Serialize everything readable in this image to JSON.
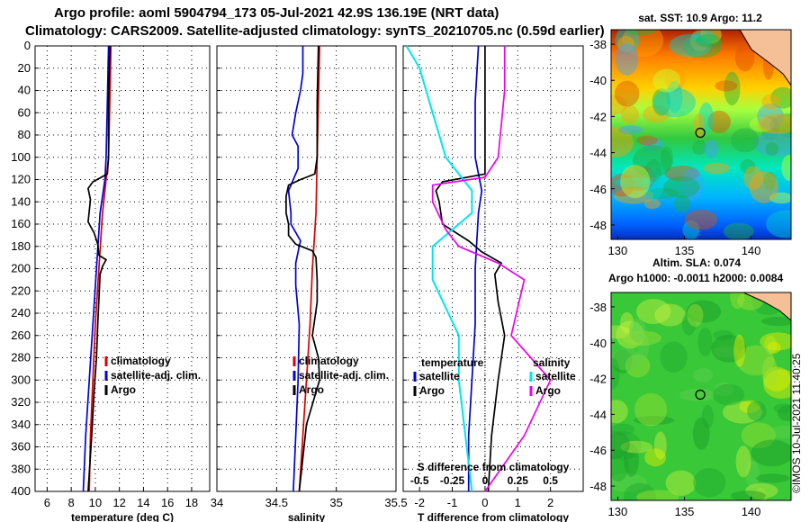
{
  "header": {
    "line1": "Argo profile: aoml 5904794_173 05-Jul-2021 42.9S 136.19E (NRT data)",
    "line2": "Climatology: CARS2009. Satellite-adjusted climatology: synTS_20210705.nc (0.59d earlier)"
  },
  "colors": {
    "climatology": "#dd0000",
    "satellite": "#0000dd",
    "argo": "#000000",
    "sat_T_diff": "#0000cc",
    "sat_S_diff": "#00e5ee",
    "argo_S_diff": "#ee00ee"
  },
  "depth_ticks": [
    "0",
    "20",
    "40",
    "60",
    "80",
    "100",
    "120",
    "140",
    "160",
    "180",
    "200",
    "220",
    "240",
    "260",
    "280",
    "300",
    "320",
    "340",
    "360",
    "380",
    "400"
  ],
  "chart_data": [
    {
      "type": "line",
      "name": "temperature",
      "xlabel": "temperature (deg C)",
      "ylabel": "depth",
      "xlim": [
        5,
        19.5
      ],
      "ylim": [
        400,
        0
      ],
      "xticks": [
        "6",
        "8",
        "10",
        "12",
        "14",
        "16",
        "18"
      ],
      "legend": [
        "climatology",
        "satellite-adj. clim.",
        "Argo"
      ],
      "series": [
        {
          "name": "climatology",
          "depth": [
            0,
            50,
            100,
            120,
            150,
            200,
            250,
            300,
            350,
            400
          ],
          "values": [
            11.3,
            11.2,
            11.1,
            10.9,
            10.6,
            10.3,
            10.0,
            9.8,
            9.6,
            9.5
          ]
        },
        {
          "name": "satellite-adj. clim.",
          "depth": [
            0,
            50,
            100,
            120,
            150,
            200,
            250,
            300,
            350,
            400
          ],
          "values": [
            11.1,
            11.0,
            10.9,
            10.8,
            10.4,
            10.1,
            9.8,
            9.5,
            9.2,
            9.0
          ]
        },
        {
          "name": "Argo",
          "depth": [
            0,
            50,
            100,
            115,
            122,
            128,
            138,
            158,
            168,
            178,
            188,
            192,
            198,
            205,
            250,
            280,
            310,
            350,
            400
          ],
          "values": [
            11.2,
            11.1,
            11.1,
            11.0,
            9.8,
            9.4,
            9.6,
            9.4,
            9.9,
            10.2,
            10.3,
            10.9,
            10.6,
            10.4,
            10.2,
            10.1,
            9.9,
            9.7,
            9.4
          ]
        }
      ]
    },
    {
      "type": "line",
      "name": "salinity",
      "xlabel": "salinity",
      "ylabel": "depth",
      "xlim": [
        34,
        35.5
      ],
      "ylim": [
        400,
        0
      ],
      "xticks": [
        "34",
        "34.5",
        "35",
        "35.5"
      ],
      "legend": [
        "climatology",
        "satellite-adj. clim.",
        "Argo"
      ],
      "series": [
        {
          "name": "climatology",
          "depth": [
            0,
            50,
            100,
            150,
            200,
            250,
            300,
            350,
            400
          ],
          "values": [
            34.86,
            34.85,
            34.84,
            34.83,
            34.8,
            34.78,
            34.75,
            34.72,
            34.69
          ]
        },
        {
          "name": "satellite-adj. clim.",
          "depth": [
            0,
            25,
            40,
            60,
            80,
            90,
            110,
            130,
            150,
            160,
            175,
            180,
            195,
            205,
            215,
            250,
            300,
            350,
            400
          ],
          "values": [
            34.72,
            34.72,
            34.7,
            34.66,
            34.63,
            34.68,
            34.68,
            34.6,
            34.62,
            34.62,
            34.7,
            34.69,
            34.66,
            34.66,
            34.66,
            34.69,
            34.68,
            34.66,
            34.64
          ]
        },
        {
          "name": "Argo",
          "depth": [
            0,
            50,
            100,
            115,
            120,
            125,
            135,
            150,
            160,
            170,
            178,
            184,
            190,
            210,
            230,
            260,
            280,
            300,
            340,
            400
          ],
          "values": [
            34.85,
            34.84,
            34.84,
            34.82,
            34.7,
            34.6,
            34.58,
            34.58,
            34.6,
            34.6,
            34.66,
            34.8,
            34.83,
            34.84,
            34.84,
            34.8,
            34.85,
            34.86,
            34.75,
            34.69
          ]
        }
      ]
    },
    {
      "type": "line",
      "name": "differences",
      "xlabel": "T difference from climatology",
      "xlim": [
        -2.5,
        3
      ],
      "ylim": [
        400,
        0
      ],
      "xticks": [
        "-2",
        "-1",
        "0",
        "1",
        "2"
      ],
      "top_label": "S difference from climatology",
      "top_ticks": [
        "-0.5",
        "-0.25",
        "0",
        "0.25",
        "0.5"
      ],
      "legend_left_title": "temperature",
      "legend_right_title": "salinity",
      "legend": [
        "satellite",
        "Argo",
        "satellite",
        "Argo"
      ],
      "series": [
        {
          "name": "T satellite",
          "depth": [
            0,
            50,
            100,
            130,
            150,
            200,
            250,
            300,
            350,
            400
          ],
          "values": [
            -0.2,
            -0.3,
            -0.3,
            -0.1,
            -0.2,
            -0.3,
            -0.3,
            -0.4,
            -0.5,
            -0.5
          ]
        },
        {
          "name": "T Argo",
          "depth": [
            0,
            50,
            100,
            115,
            122,
            130,
            140,
            160,
            175,
            185,
            195,
            205,
            230,
            260,
            300,
            350,
            400
          ],
          "values": [
            0,
            0,
            0,
            0,
            -1.3,
            -1.5,
            -1.4,
            -1.3,
            -0.5,
            -0.1,
            0.5,
            0.3,
            0.4,
            0.6,
            0.4,
            0.2,
            0.1
          ]
        },
        {
          "name": "S satellite",
          "depth": [
            0,
            20,
            60,
            100,
            130,
            150,
            180,
            210,
            260,
            300,
            350,
            400
          ],
          "values": [
            -0.6,
            -0.5,
            -0.4,
            -0.3,
            -0.1,
            -0.1,
            -0.4,
            -0.4,
            -0.2,
            -0.2,
            -0.15,
            -0.1
          ]
        },
        {
          "name": "S Argo",
          "depth": [
            0,
            40,
            100,
            118,
            125,
            140,
            165,
            180,
            195,
            210,
            260,
            300,
            350,
            400
          ],
          "values": [
            0.15,
            0.15,
            0.1,
            0,
            -0.4,
            -0.4,
            -0.3,
            -0.2,
            0.1,
            0.3,
            0.2,
            0.5,
            0.3,
            0
          ]
        }
      ]
    },
    {
      "type": "heatmap",
      "name": "sst_map",
      "title": "sat. SST: 10.9 Argo: 11.2",
      "xticks": [
        "130",
        "135",
        "140"
      ],
      "yticks": [
        "-38",
        "-40",
        "-42",
        "-44",
        "-46",
        "-48"
      ],
      "xlim": [
        129.5,
        143
      ],
      "ylim": [
        -48.8,
        -37.2
      ],
      "marker": {
        "lon": 136.19,
        "lat": -42.9
      }
    },
    {
      "type": "heatmap",
      "name": "sla_map",
      "title": "Altim. SLA: 0.074",
      "subtitle": "Argo h1000: -0.0011 h2000: 0.0084",
      "xticks": [
        "130",
        "135",
        "140"
      ],
      "yticks": [
        "-38",
        "-40",
        "-42",
        "-44",
        "-46",
        "-48"
      ],
      "xlim": [
        129.5,
        143
      ],
      "ylim": [
        -48.8,
        -37.2
      ],
      "marker": {
        "lon": 136.19,
        "lat": -42.9
      }
    }
  ],
  "credit": "©IMOS 10-Jul-2021 11:40:25"
}
